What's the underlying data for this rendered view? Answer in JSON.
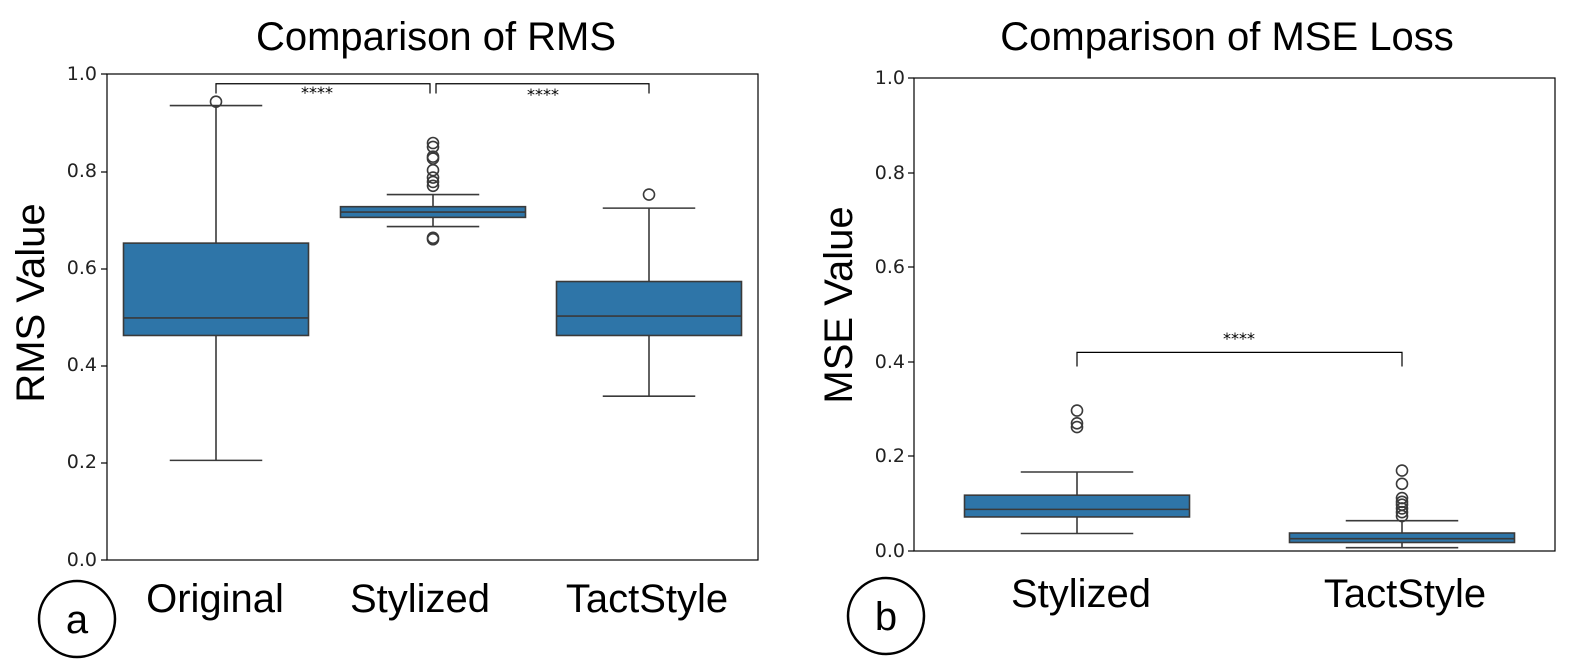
{
  "box_color": "#2e75a8",
  "chart_data": [
    {
      "type": "box",
      "title": "Comparison of RMS",
      "ylabel": "RMS Value",
      "ylim": [
        0.0,
        1.0
      ],
      "yticks": [
        "0.0",
        "0.2",
        "0.4",
        "0.6",
        "0.8",
        "1.0"
      ],
      "panel_label": "a",
      "boxes": [
        {
          "category": "Original",
          "whisker_low": 0.205,
          "q1": 0.462,
          "median": 0.498,
          "q3": 0.652,
          "whisker_high": 0.935,
          "outliers": [
            0.943
          ]
        },
        {
          "category": "Stylized",
          "whisker_low": 0.686,
          "q1": 0.705,
          "median": 0.716,
          "q3": 0.727,
          "whisker_high": 0.752,
          "outliers": [
            0.66,
            0.663,
            0.77,
            0.778,
            0.787,
            0.802,
            0.826,
            0.83,
            0.85,
            0.858
          ]
        },
        {
          "category": "TactStyle",
          "whisker_low": 0.337,
          "q1": 0.462,
          "median": 0.502,
          "q3": 0.573,
          "whisker_high": 0.724,
          "outliers": [
            0.752
          ]
        }
      ],
      "significance": [
        {
          "from": 0,
          "to": 1,
          "label": "****",
          "y": 0.98
        },
        {
          "from": 1,
          "to": 2,
          "label": "****",
          "y": 0.98
        }
      ]
    },
    {
      "type": "box",
      "title": "Comparison of MSE Loss",
      "ylabel": "MSE Value",
      "ylim": [
        0.0,
        1.0
      ],
      "yticks": [
        "0.0",
        "0.2",
        "0.4",
        "0.6",
        "0.8",
        "1.0"
      ],
      "panel_label": "b",
      "boxes": [
        {
          "category": "Stylized",
          "whisker_low": 0.037,
          "q1": 0.072,
          "median": 0.088,
          "q3": 0.118,
          "whisker_high": 0.167,
          "outliers": [
            0.262,
            0.27,
            0.297
          ]
        },
        {
          "category": "TactStyle",
          "whisker_low": 0.007,
          "q1": 0.018,
          "median": 0.026,
          "q3": 0.038,
          "whisker_high": 0.064,
          "outliers": [
            0.074,
            0.082,
            0.09,
            0.098,
            0.104,
            0.112,
            0.142,
            0.17
          ]
        }
      ],
      "significance": [
        {
          "from": 0,
          "to": 1,
          "label": "****",
          "y": 0.42
        }
      ]
    }
  ]
}
